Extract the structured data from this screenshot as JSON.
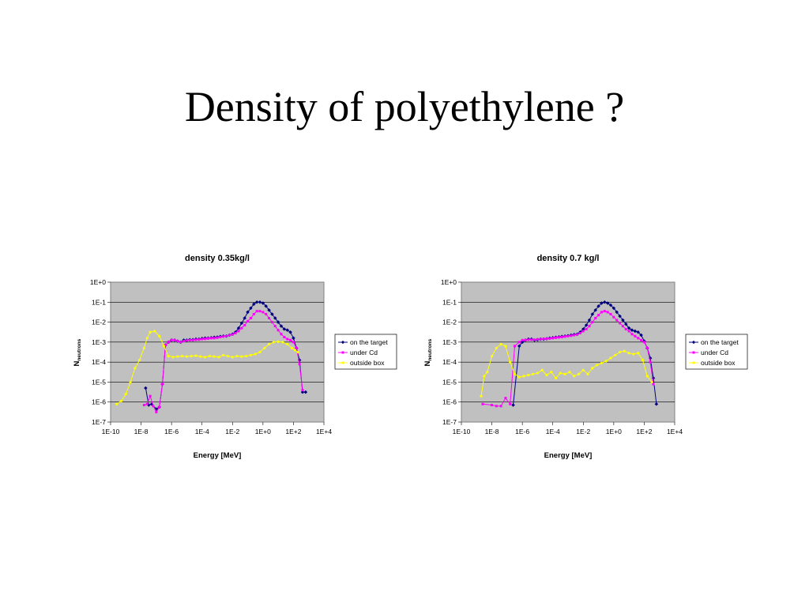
{
  "slide": {
    "title": "Density of polyethylene ?"
  },
  "chart_data": [
    {
      "type": "scatter",
      "title": "density 0.35kg/l",
      "xlabel": "Energy [MeV]",
      "ylabel_main": "N",
      "ylabel_sub": "neutrons",
      "x_scale": "log",
      "y_scale": "log",
      "xlim": [
        1e-10,
        10000.0
      ],
      "ylim": [
        1e-07,
        1
      ],
      "x_ticks": [
        "1E-10",
        "1E-8",
        "1E-6",
        "1E-4",
        "1E-2",
        "1E+0",
        "1E+2",
        "1E+4"
      ],
      "y_ticks": [
        "1E-7",
        "1E-6",
        "1E-5",
        "1E-4",
        "1E-3",
        "1E-2",
        "1E-1",
        "1E+0"
      ],
      "grid": "horizontal",
      "plot_background": "#c0c0c0",
      "legend_position": "right",
      "series": [
        {
          "name": "on the target",
          "color": "#000080",
          "x": [
            -7.7,
            -7.5,
            -7.3,
            -7.0,
            -6.8,
            -6.6,
            -6.4,
            -6.2,
            -6.0,
            -5.8,
            -5.6,
            -5.4,
            -5.2,
            -5.0,
            -4.8,
            -4.6,
            -4.4,
            -4.2,
            -4.0,
            -3.8,
            -3.6,
            -3.4,
            -3.2,
            -3.0,
            -2.8,
            -2.6,
            -2.4,
            -2.2,
            -2.0,
            -1.8,
            -1.6,
            -1.4,
            -1.2,
            -1.0,
            -0.8,
            -0.6,
            -0.4,
            -0.2,
            0.0,
            0.2,
            0.4,
            0.6,
            0.8,
            1.0,
            1.2,
            1.4,
            1.6,
            1.8,
            2.0,
            2.2,
            2.4,
            2.6,
            2.8
          ],
          "y": [
            -5.3,
            -6.15,
            -6.1,
            -6.35,
            -6.25,
            -5.1,
            -3.15,
            -3.0,
            -2.9,
            -2.9,
            -2.95,
            -3.0,
            -2.9,
            -2.9,
            -2.88,
            -2.88,
            -2.85,
            -2.85,
            -2.82,
            -2.8,
            -2.8,
            -2.78,
            -2.76,
            -2.75,
            -2.72,
            -2.7,
            -2.7,
            -2.65,
            -2.6,
            -2.5,
            -2.3,
            -2.05,
            -1.8,
            -1.5,
            -1.3,
            -1.1,
            -1.0,
            -1.0,
            -1.05,
            -1.2,
            -1.4,
            -1.6,
            -1.8,
            -2.0,
            -2.2,
            -2.35,
            -2.4,
            -2.5,
            -2.8,
            -3.3,
            -3.9,
            -5.5,
            -5.5
          ]
        },
        {
          "name": "under Cd",
          "color": "#ff00ff",
          "x": [
            -7.8,
            -7.6,
            -7.4,
            -7.2,
            -7.0,
            -6.8,
            -6.6,
            -6.4,
            -6.2,
            -6.0,
            -5.8,
            -5.6,
            -5.4,
            -5.2,
            -5.0,
            -4.8,
            -4.6,
            -4.4,
            -4.2,
            -4.0,
            -3.8,
            -3.6,
            -3.4,
            -3.2,
            -3.0,
            -2.8,
            -2.6,
            -2.4,
            -2.2,
            -2.0,
            -1.8,
            -1.6,
            -1.4,
            -1.2,
            -1.0,
            -0.8,
            -0.6,
            -0.4,
            -0.2,
            0.0,
            0.2,
            0.4,
            0.6,
            0.8,
            1.0,
            1.2,
            1.4,
            1.6,
            1.8,
            2.0,
            2.2,
            2.4,
            2.6
          ],
          "y": [
            -6.15,
            -6.1,
            -5.7,
            -6.2,
            -6.5,
            -6.25,
            -5.1,
            -3.15,
            -3.0,
            -2.9,
            -2.9,
            -2.95,
            -3.0,
            -2.95,
            -2.92,
            -2.9,
            -2.9,
            -2.88,
            -2.87,
            -2.85,
            -2.84,
            -2.82,
            -2.8,
            -2.8,
            -2.78,
            -2.75,
            -2.72,
            -2.7,
            -2.65,
            -2.62,
            -2.55,
            -2.45,
            -2.3,
            -2.15,
            -1.95,
            -1.8,
            -1.6,
            -1.45,
            -1.45,
            -1.5,
            -1.6,
            -1.8,
            -2.0,
            -2.2,
            -2.4,
            -2.6,
            -2.75,
            -2.85,
            -2.9,
            -3.0,
            -3.3,
            -4.1,
            -5.4
          ]
        },
        {
          "name": "outside box",
          "color": "#ffff00",
          "x": [
            -9.6,
            -9.3,
            -9.0,
            -8.7,
            -8.4,
            -8.1,
            -7.8,
            -7.6,
            -7.4,
            -7.1,
            -6.8,
            -6.5,
            -6.2,
            -5.9,
            -5.6,
            -5.3,
            -5.0,
            -4.7,
            -4.4,
            -4.1,
            -3.8,
            -3.5,
            -3.2,
            -2.9,
            -2.6,
            -2.3,
            -2.0,
            -1.7,
            -1.4,
            -1.1,
            -0.8,
            -0.5,
            -0.2,
            0.1,
            0.4,
            0.7,
            1.0,
            1.3,
            1.6,
            1.9,
            2.1,
            2.3
          ],
          "y": [
            -6.1,
            -5.95,
            -5.6,
            -5.0,
            -4.3,
            -3.9,
            -3.3,
            -2.8,
            -2.5,
            -2.45,
            -2.7,
            -3.2,
            -3.7,
            -3.75,
            -3.72,
            -3.7,
            -3.72,
            -3.7,
            -3.68,
            -3.72,
            -3.75,
            -3.7,
            -3.72,
            -3.75,
            -3.65,
            -3.7,
            -3.75,
            -3.7,
            -3.72,
            -3.7,
            -3.65,
            -3.6,
            -3.5,
            -3.3,
            -3.1,
            -3.0,
            -2.98,
            -3.0,
            -3.1,
            -3.3,
            -3.4,
            -3.5
          ]
        }
      ]
    },
    {
      "type": "scatter",
      "title": "density 0.7 kg/l",
      "xlabel": "Energy [MeV]",
      "ylabel_main": "N",
      "ylabel_sub": "neutrons",
      "x_scale": "log",
      "y_scale": "log",
      "xlim": [
        1e-10,
        10000.0
      ],
      "ylim": [
        1e-07,
        1
      ],
      "x_ticks": [
        "1E-10",
        "1E-8",
        "1E-6",
        "1E-4",
        "1E-2",
        "1E+0",
        "1E+2",
        "1E+4"
      ],
      "y_ticks": [
        "1E-7",
        "1E-6",
        "1E-5",
        "1E-4",
        "1E-3",
        "1E-2",
        "1E-1",
        "1E+0"
      ],
      "grid": "horizontal",
      "plot_background": "#c0c0c0",
      "legend_position": "right",
      "series": [
        {
          "name": "on the target",
          "color": "#000080",
          "x": [
            -6.6,
            -6.2,
            -6.0,
            -5.8,
            -5.6,
            -5.4,
            -5.2,
            -5.0,
            -4.8,
            -4.6,
            -4.4,
            -4.2,
            -4.0,
            -3.8,
            -3.6,
            -3.4,
            -3.2,
            -3.0,
            -2.8,
            -2.6,
            -2.4,
            -2.2,
            -2.0,
            -1.8,
            -1.6,
            -1.4,
            -1.2,
            -1.0,
            -0.8,
            -0.6,
            -0.4,
            -0.2,
            0.0,
            0.2,
            0.4,
            0.6,
            0.8,
            1.0,
            1.2,
            1.4,
            1.6,
            1.8,
            2.0,
            2.2,
            2.4,
            2.6,
            2.8
          ],
          "y": [
            -6.15,
            -3.2,
            -3.0,
            -2.9,
            -2.85,
            -2.85,
            -2.9,
            -2.88,
            -2.85,
            -2.85,
            -2.83,
            -2.8,
            -2.78,
            -2.76,
            -2.74,
            -2.72,
            -2.7,
            -2.68,
            -2.65,
            -2.62,
            -2.6,
            -2.5,
            -2.35,
            -2.15,
            -1.9,
            -1.6,
            -1.4,
            -1.2,
            -1.05,
            -1.0,
            -1.05,
            -1.15,
            -1.3,
            -1.5,
            -1.7,
            -1.9,
            -2.1,
            -2.3,
            -2.4,
            -2.45,
            -2.5,
            -2.65,
            -2.95,
            -3.3,
            -3.8,
            -4.8,
            -6.1
          ]
        },
        {
          "name": "under Cd",
          "color": "#ff00ff",
          "x": [
            -8.6,
            -8.0,
            -7.7,
            -7.4,
            -7.1,
            -6.8,
            -6.5,
            -6.2,
            -6.0,
            -5.8,
            -5.6,
            -5.4,
            -5.2,
            -5.0,
            -4.8,
            -4.6,
            -4.4,
            -4.2,
            -4.0,
            -3.8,
            -3.6,
            -3.4,
            -3.2,
            -3.0,
            -2.8,
            -2.6,
            -2.4,
            -2.2,
            -2.0,
            -1.8,
            -1.6,
            -1.4,
            -1.2,
            -1.0,
            -0.8,
            -0.6,
            -0.4,
            -0.2,
            0.0,
            0.2,
            0.4,
            0.6,
            0.8,
            1.0,
            1.2,
            1.4,
            1.6,
            1.8,
            2.0,
            2.2,
            2.4,
            2.6
          ],
          "y": [
            -6.1,
            -6.15,
            -6.2,
            -6.2,
            -5.8,
            -6.1,
            -3.2,
            -3.0,
            -2.9,
            -2.9,
            -2.88,
            -2.88,
            -2.88,
            -2.86,
            -2.85,
            -2.84,
            -2.83,
            -2.82,
            -2.8,
            -2.78,
            -2.76,
            -2.75,
            -2.72,
            -2.7,
            -2.68,
            -2.65,
            -2.62,
            -2.55,
            -2.45,
            -2.35,
            -2.2,
            -2.0,
            -1.8,
            -1.65,
            -1.5,
            -1.45,
            -1.5,
            -1.6,
            -1.75,
            -1.9,
            -2.05,
            -2.2,
            -2.35,
            -2.45,
            -2.6,
            -2.7,
            -2.8,
            -2.9,
            -3.0,
            -3.3,
            -4.0,
            -5.1
          ]
        },
        {
          "name": "outside box",
          "color": "#ffff00",
          "x": [
            -8.7,
            -8.5,
            -8.3,
            -8.0,
            -7.7,
            -7.4,
            -7.1,
            -6.8,
            -6.5,
            -6.2,
            -5.9,
            -5.6,
            -5.3,
            -5.0,
            -4.7,
            -4.4,
            -4.1,
            -3.8,
            -3.5,
            -3.2,
            -2.9,
            -2.6,
            -2.3,
            -2.0,
            -1.7,
            -1.4,
            -1.1,
            -0.8,
            -0.5,
            -0.2,
            0.1,
            0.4,
            0.7,
            1.0,
            1.3,
            1.6,
            1.9,
            2.2,
            2.5
          ],
          "y": [
            -5.7,
            -4.7,
            -4.5,
            -3.7,
            -3.3,
            -3.1,
            -3.2,
            -4.0,
            -4.6,
            -4.75,
            -4.7,
            -4.65,
            -4.6,
            -4.55,
            -4.4,
            -4.65,
            -4.5,
            -4.8,
            -4.55,
            -4.6,
            -4.5,
            -4.7,
            -4.6,
            -4.4,
            -4.6,
            -4.3,
            -4.15,
            -4.05,
            -3.95,
            -3.8,
            -3.65,
            -3.5,
            -3.45,
            -3.55,
            -3.6,
            -3.55,
            -3.9,
            -4.7,
            -5.0
          ]
        }
      ]
    }
  ]
}
